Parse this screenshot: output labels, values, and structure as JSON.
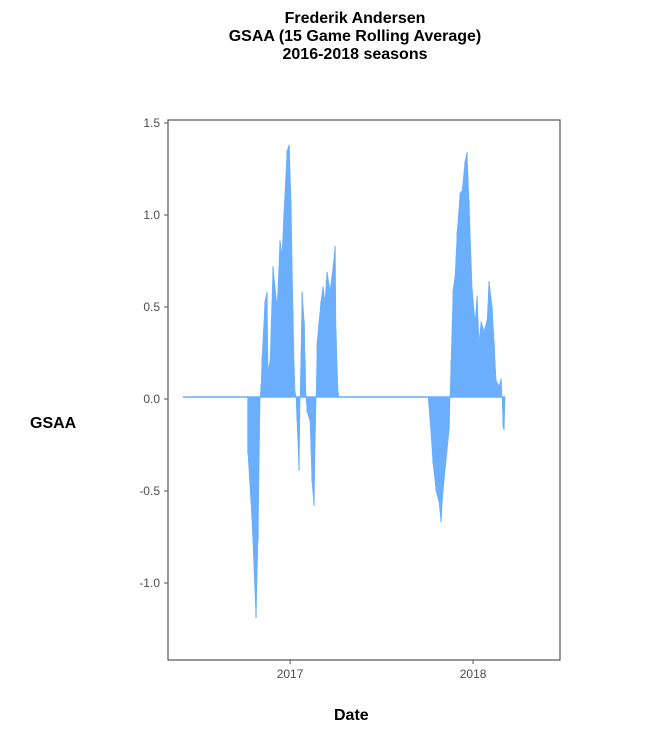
{
  "chart_data": {
    "type": "area",
    "title": [
      "Frederik Andersen",
      "GSAA (15 Game Rolling Average)",
      "2016-2018 seasons"
    ],
    "xlabel": "Date",
    "ylabel": "GSAA",
    "ylim": [
      -1.4,
      1.5
    ],
    "xlim": [
      2016.333,
      2018.475
    ],
    "yticks": [
      1.5,
      1.0,
      0.5,
      0.0,
      -0.5,
      -1.0
    ],
    "ytick_labels": [
      "1.5",
      "1.0",
      "0.5",
      "0.0",
      "-0.5",
      "-1.0"
    ],
    "xticks": [
      2017,
      2018
    ],
    "xtick_labels": [
      "2017",
      "2018"
    ],
    "grid": false,
    "color": "#6aaefc",
    "series": [
      {
        "name": "GSAA",
        "points": [
          [
            2016.415,
            0
          ],
          [
            2016.77,
            0
          ],
          [
            2016.77,
            -0.31
          ],
          [
            2016.792,
            -0.67
          ],
          [
            2016.814,
            -1.2
          ],
          [
            2016.825,
            -0.78
          ],
          [
            2016.836,
            0
          ],
          [
            2016.842,
            0.07
          ],
          [
            2016.847,
            0.22
          ],
          [
            2016.863,
            0.52
          ],
          [
            2016.874,
            0.57
          ],
          [
            2016.88,
            0.14
          ],
          [
            2016.891,
            0.2
          ],
          [
            2016.907,
            0.71
          ],
          [
            2016.918,
            0.6
          ],
          [
            2016.929,
            0.49
          ],
          [
            2016.945,
            0.85
          ],
          [
            2016.956,
            0.77
          ],
          [
            2016.967,
            1.01
          ],
          [
            2016.984,
            1.34
          ],
          [
            2016.995,
            1.37
          ],
          [
            2017.005,
            1.07
          ],
          [
            2017.016,
            0.47
          ],
          [
            2017.022,
            0.17
          ],
          [
            2017.027,
            0.03
          ],
          [
            2017.033,
            0
          ],
          [
            2017.038,
            -0.13
          ],
          [
            2017.049,
            -0.4
          ],
          [
            2017.055,
            0
          ],
          [
            2017.066,
            0.57
          ],
          [
            2017.077,
            0.41
          ],
          [
            2017.082,
            0.2
          ],
          [
            2017.087,
            0
          ],
          [
            2017.093,
            -0.08
          ],
          [
            2017.109,
            -0.13
          ],
          [
            2017.12,
            -0.46
          ],
          [
            2017.131,
            -0.59
          ],
          [
            2017.142,
            0
          ],
          [
            2017.148,
            0.3
          ],
          [
            2017.158,
            0.41
          ],
          [
            2017.169,
            0.52
          ],
          [
            2017.18,
            0.6
          ],
          [
            2017.191,
            0.52
          ],
          [
            2017.202,
            0.68
          ],
          [
            2017.219,
            0.58
          ],
          [
            2017.235,
            0.71
          ],
          [
            2017.246,
            0.82
          ],
          [
            2017.251,
            0.36
          ],
          [
            2017.262,
            0.03
          ],
          [
            2017.268,
            0
          ],
          [
            2017.754,
            0
          ],
          [
            2017.765,
            -0.13
          ],
          [
            2017.781,
            -0.36
          ],
          [
            2017.798,
            -0.51
          ],
          [
            2017.814,
            -0.57
          ],
          [
            2017.825,
            -0.68
          ],
          [
            2017.836,
            -0.51
          ],
          [
            2017.869,
            -0.18
          ],
          [
            2017.874,
            0
          ],
          [
            2017.88,
            0.2
          ],
          [
            2017.891,
            0.58
          ],
          [
            2017.902,
            0.66
          ],
          [
            2017.913,
            0.9
          ],
          [
            2017.929,
            1.11
          ],
          [
            2017.94,
            1.12
          ],
          [
            2017.956,
            1.28
          ],
          [
            2017.967,
            1.33
          ],
          [
            2017.978,
            1.07
          ],
          [
            2017.995,
            0.58
          ],
          [
            2018.011,
            0.41
          ],
          [
            2018.022,
            0.55
          ],
          [
            2018.033,
            0.3
          ],
          [
            2018.044,
            0.41
          ],
          [
            2018.06,
            0.36
          ],
          [
            2018.077,
            0.42
          ],
          [
            2018.087,
            0.63
          ],
          [
            2018.104,
            0.49
          ],
          [
            2018.115,
            0.3
          ],
          [
            2018.126,
            0.09
          ],
          [
            2018.142,
            0.06
          ],
          [
            2018.153,
            0.1
          ],
          [
            2018.158,
            0
          ],
          [
            2018.164,
            -0.16
          ],
          [
            2018.169,
            -0.18
          ],
          [
            2018.175,
            0
          ]
        ]
      }
    ]
  }
}
